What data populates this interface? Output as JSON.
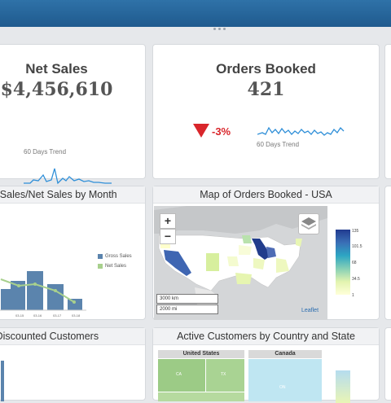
{
  "kpis": [
    {
      "title": "Net Sales",
      "value": "$4,456,610",
      "trend_label": "60 Days Trend"
    },
    {
      "title": "Orders Booked",
      "value": "421",
      "trend_label": "60 Days Trend",
      "change": "-3%"
    }
  ],
  "panels": {
    "sales_by_month": {
      "title": "Gross Sales/Net Sales by Month",
      "legend": [
        "Gross Sales",
        "Net Sales"
      ],
      "colors": {
        "gross": "#5b84ad",
        "net": "#a8d08d"
      }
    },
    "map": {
      "title": "Map of Orders Booked - USA",
      "zoom_in": "+",
      "zoom_out": "−",
      "scale_km": "3000 km",
      "scale_mi": "2000 mi",
      "attribution": "Leaflet",
      "legend_ticks": [
        "135",
        "101.5",
        "68",
        "34.5",
        "1"
      ],
      "layers_icon": "layers-icon"
    },
    "discounted": {
      "title": "Top Discounted Customers"
    },
    "active_customers": {
      "title": "Active Customers by Country and State",
      "countries": [
        "United States",
        "Canada"
      ],
      "cells": [
        "CA",
        "TX",
        "ON"
      ]
    }
  }
}
